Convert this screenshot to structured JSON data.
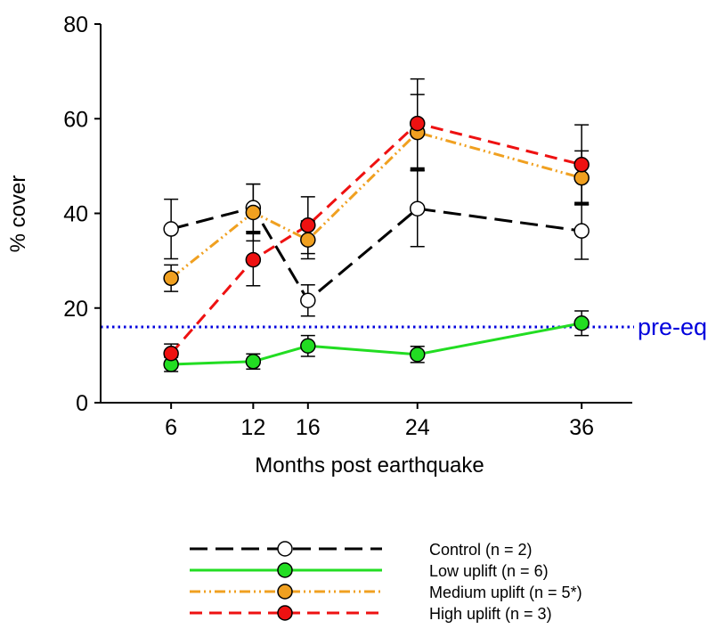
{
  "chart_data": {
    "type": "line",
    "title": "",
    "xlabel": "Months post earthquake",
    "ylabel": "% cover",
    "x": [
      6,
      12,
      16,
      24,
      36
    ],
    "xticks": [
      "6",
      "12",
      "16",
      "24",
      "36"
    ],
    "yticks": [
      "0",
      "20",
      "40",
      "60",
      "80"
    ],
    "ylim": [
      0,
      80
    ],
    "grid": false,
    "legend_position": "bottom",
    "reference_line": {
      "label": "pre-eq",
      "y": 16,
      "color": "#0000dd",
      "style": "dotted"
    },
    "series": [
      {
        "name": "Control (n = 2)",
        "color": "#000000",
        "marker_fill": "#ffffff",
        "dash": "long-dash",
        "values": [
          36.7,
          41.2,
          21.6,
          41.0,
          36.3
        ],
        "err": [
          6.3,
          5.0,
          3.3,
          8.0,
          6.0
        ],
        "bar_midpoints": [
          null,
          36.0,
          null,
          49.2,
          42.0
        ]
      },
      {
        "name": "Low uplift (n = 6)",
        "color": "#22dd22",
        "marker_fill": "#22dd22",
        "dash": "solid",
        "values": [
          8.1,
          8.7,
          12.0,
          10.2,
          16.8
        ],
        "err": [
          1.5,
          1.6,
          2.2,
          1.7,
          2.6
        ],
        "bar_midpoints": [
          null,
          null,
          null,
          null,
          null
        ]
      },
      {
        "name": "Medium uplift (n = 5*)",
        "color": "#f0a020",
        "marker_fill": "#f0a020",
        "dash": "dash-dot-dot",
        "values": [
          26.3,
          40.2,
          34.4,
          57.1,
          47.5
        ],
        "err": [
          2.8,
          6.0,
          4.0,
          8.0,
          5.7
        ],
        "bar_midpoints": [
          null,
          null,
          null,
          null,
          null
        ]
      },
      {
        "name": "High uplift (n = 3)",
        "color": "#ee1111",
        "marker_fill": "#ee1111",
        "dash": "dash",
        "values": [
          10.4,
          30.2,
          37.5,
          59.0,
          50.3
        ],
        "err": [
          2.0,
          5.5,
          6.0,
          9.4,
          8.4
        ],
        "bar_midpoints": [
          null,
          null,
          null,
          null,
          null
        ]
      }
    ]
  }
}
